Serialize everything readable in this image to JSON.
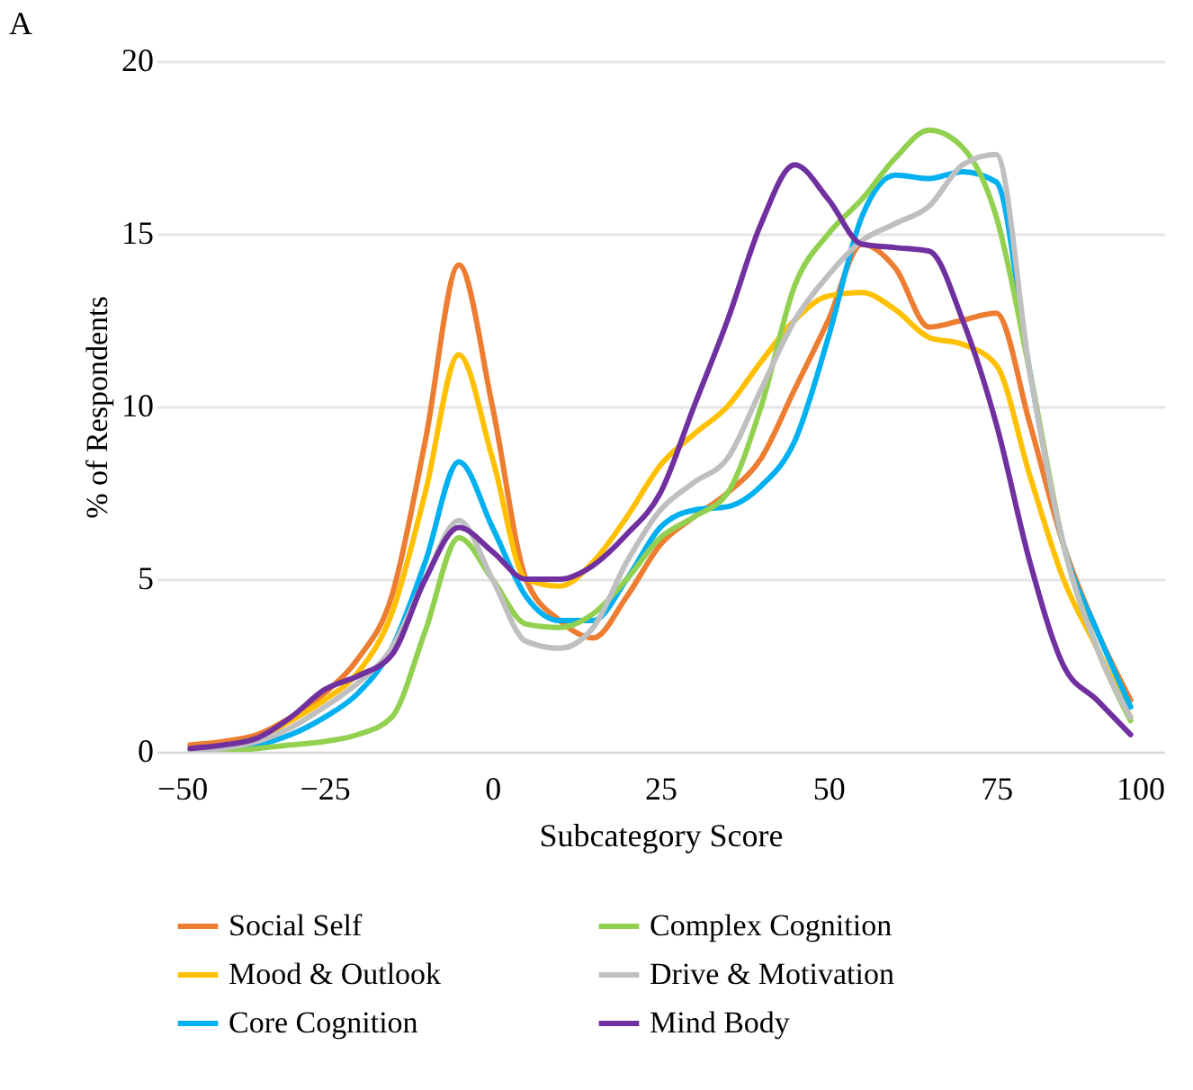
{
  "chart_data": {
    "type": "line",
    "xlabel": "Subcategory Score",
    "ylabel": "% of Respondents",
    "annotations": [
      "A"
    ],
    "x": [
      -45,
      -40,
      -35,
      -30,
      -25,
      -20,
      -15,
      -10,
      -5,
      0,
      5,
      10,
      15,
      20,
      25,
      30,
      35,
      40,
      45,
      50,
      55,
      60,
      65,
      70,
      75,
      80,
      85,
      90,
      95
    ],
    "series": [
      {
        "name": "Social Self",
        "color": "#ed7d31",
        "values": [
          0.2,
          0.3,
          0.5,
          1,
          1.7,
          2.7,
          4.5,
          9,
          14.1,
          10,
          5,
          3.8,
          3.3,
          4.5,
          6,
          6.8,
          7.5,
          8.5,
          10.5,
          12.5,
          14.7,
          14,
          12.3,
          12.5,
          12.7,
          9.5,
          6,
          3.5,
          1.5
        ]
      },
      {
        "name": "Mood & Outlook",
        "color": "#ffc000",
        "values": [
          0.1,
          0.2,
          0.4,
          0.9,
          1.5,
          2.3,
          4,
          7.5,
          11.5,
          8.5,
          5,
          4.8,
          5.5,
          6.8,
          8.3,
          9.2,
          10,
          11.3,
          12.5,
          13.2,
          13.3,
          12.8,
          12,
          11.8,
          11.2,
          8,
          5,
          3,
          1
        ]
      },
      {
        "name": "Core Cognition",
        "color": "#00b0f0",
        "values": [
          0,
          0.1,
          0.2,
          0.5,
          1,
          1.7,
          3,
          5.5,
          8.4,
          6.5,
          4.5,
          3.8,
          3.8,
          5,
          6.5,
          7,
          7.1,
          7.7,
          9,
          12,
          15.5,
          16.7,
          16.6,
          16.8,
          16.5,
          11,
          6,
          3.5,
          1.3
        ]
      },
      {
        "name": "Complex Cognition",
        "color": "#92d050",
        "values": [
          0,
          0,
          0.1,
          0.2,
          0.3,
          0.5,
          1,
          3.5,
          6.2,
          5,
          3.7,
          3.6,
          4,
          5,
          6.2,
          6.8,
          7.5,
          10,
          13.5,
          15,
          16,
          17.2,
          18,
          17.5,
          15.5,
          11,
          6,
          3,
          0.9
        ]
      },
      {
        "name": "Drive & Motivation",
        "color": "#bfbfbf",
        "values": [
          0,
          0.1,
          0.3,
          0.7,
          1.3,
          2,
          3,
          5,
          6.7,
          5,
          3.2,
          3,
          3.6,
          5.5,
          7,
          7.8,
          8.5,
          10.5,
          12.5,
          13.8,
          14.8,
          15.3,
          15.8,
          17,
          17.3,
          11,
          6,
          3,
          1
        ]
      },
      {
        "name": "Mind Body",
        "color": "#7030a0",
        "values": [
          0.1,
          0.2,
          0.4,
          1,
          1.8,
          2.2,
          2.8,
          5,
          6.5,
          5.8,
          5,
          5,
          5.4,
          6.3,
          7.5,
          10,
          12.5,
          15.3,
          17,
          16,
          14.7,
          14.6,
          14.5,
          12.5,
          9.5,
          5.5,
          2.5,
          1.5,
          0.5
        ]
      }
    ],
    "xlim": [
      -50,
      100
    ],
    "xticks": [
      -50,
      -25,
      0,
      25,
      50,
      75,
      100
    ],
    "ylim": [
      0,
      20
    ],
    "yticks": [
      0,
      5,
      10,
      15,
      20
    ],
    "grid": "y",
    "legend": "bottom",
    "marker": "none",
    "line_style": "solid"
  }
}
